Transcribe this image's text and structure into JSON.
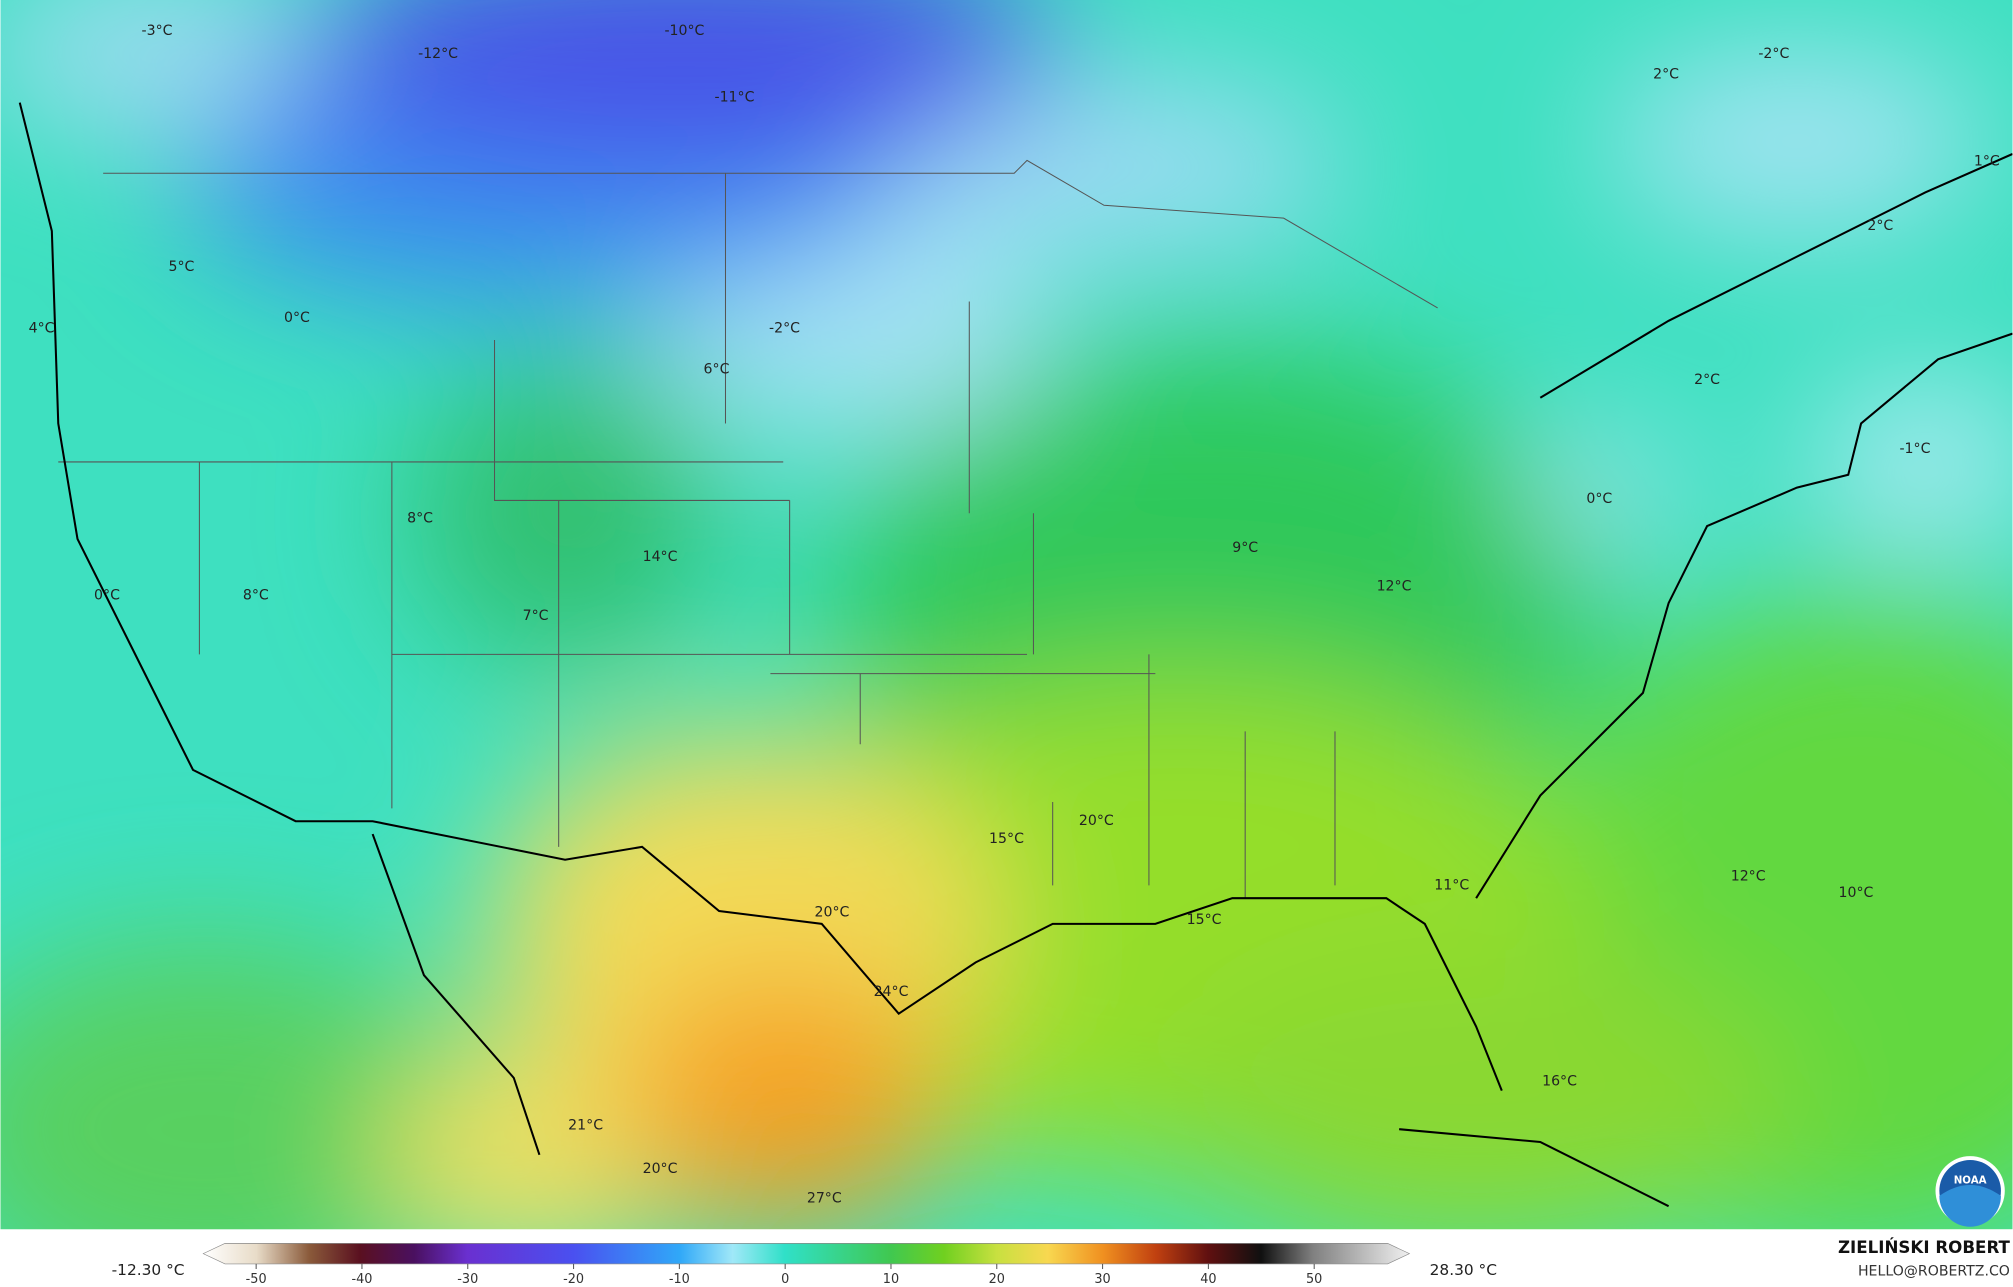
{
  "map": {
    "labels": [
      "-3°C",
      "-12°C",
      "-10°C",
      "-11°C",
      "2°C",
      "-2°C",
      "1°C",
      "2°C",
      "5°C",
      "0°C",
      "4°C",
      "-2°C",
      "6°C",
      "2°C",
      "-1°C",
      "0°C",
      "8°C",
      "14°C",
      "9°C",
      "12°C",
      "0°C",
      "8°C",
      "7°C",
      "20°C",
      "15°C",
      "12°C",
      "10°C",
      "11°C",
      "15°C",
      "20°C",
      "24°C",
      "16°C",
      "21°C",
      "20°C",
      "27°C"
    ]
  },
  "colorbar": {
    "min_label": "-12.30 °C",
    "max_label": "28.30 °C",
    "lim": [
      -55,
      59
    ],
    "ticks": [
      -50,
      -40,
      -30,
      -20,
      -10,
      0,
      10,
      20,
      30,
      40,
      50
    ]
  },
  "credit": {
    "author": "ZIELIŃSKI ROBERT",
    "contact": "HELLO@ROBERTZ.CO"
  },
  "logo": "NOAA"
}
